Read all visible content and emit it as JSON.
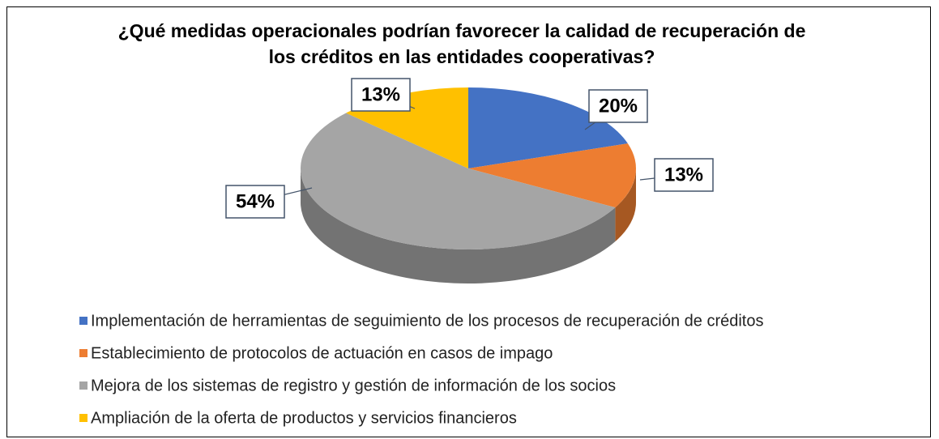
{
  "chart_data": {
    "type": "pie3d",
    "title": "¿Qué medidas operacionales podrían favorecer la calidad de recuperación de los créditos en las entidades cooperativas?",
    "categories": [
      "Implementación de herramientas de seguimiento de los procesos de recuperación de créditos",
      "Establecimiento de protocolos de actuación en casos de impago",
      "Mejora de los sistemas de registro y gestión de información de los socios",
      "Ampliación de la oferta de productos y servicios financieros"
    ],
    "values": [
      20,
      13,
      54,
      13
    ],
    "value_labels": [
      "20%",
      "13%",
      "54%",
      "13%"
    ],
    "colors": [
      "#4472c4",
      "#ed7d31",
      "#a5a5a5",
      "#ffc000"
    ],
    "legend": "bottom"
  }
}
